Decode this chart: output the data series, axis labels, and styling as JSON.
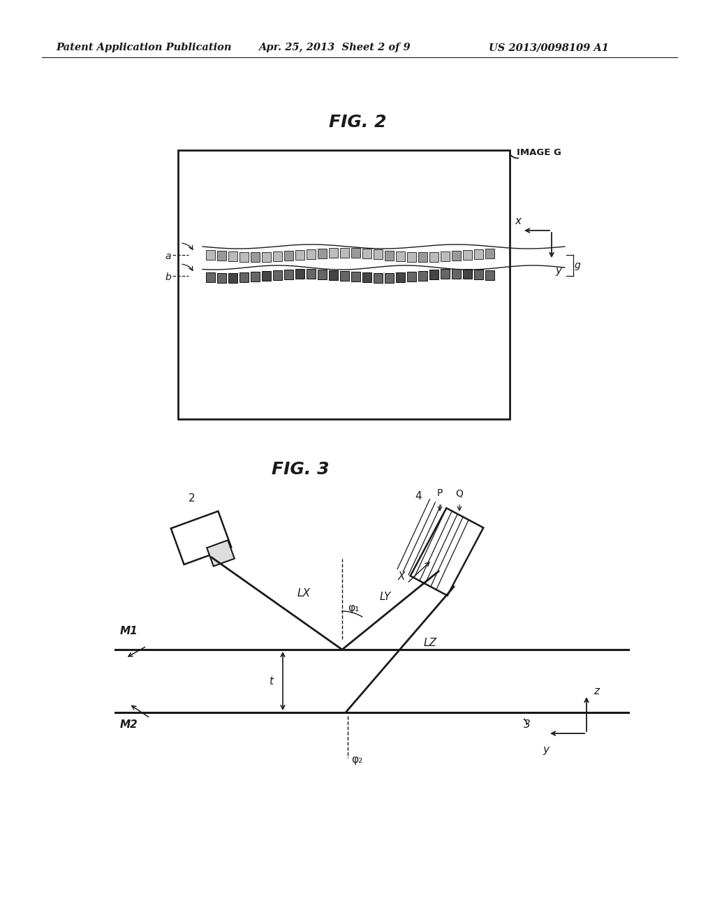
{
  "bg_color": "#ffffff",
  "header_left": "Patent Application Publication",
  "header_center": "Apr. 25, 2013  Sheet 2 of 9",
  "header_right": "US 2013/0098109 A1",
  "fig2_title": "FIG. 2",
  "fig3_title": "FIG. 3",
  "text_color": "#1a1a1a",
  "line_color": "#1a1a1a"
}
